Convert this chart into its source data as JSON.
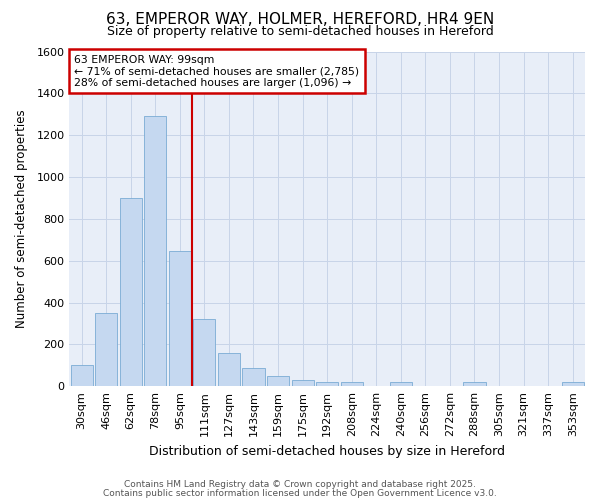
{
  "title1": "63, EMPEROR WAY, HOLMER, HEREFORD, HR4 9EN",
  "title2": "Size of property relative to semi-detached houses in Hereford",
  "xlabel": "Distribution of semi-detached houses by size in Hereford",
  "ylabel": "Number of semi-detached properties",
  "categories": [
    "30sqm",
    "46sqm",
    "62sqm",
    "78sqm",
    "95sqm",
    "111sqm",
    "127sqm",
    "143sqm",
    "159sqm",
    "175sqm",
    "192sqm",
    "208sqm",
    "224sqm",
    "240sqm",
    "256sqm",
    "272sqm",
    "288sqm",
    "305sqm",
    "321sqm",
    "337sqm",
    "353sqm"
  ],
  "bar_values": [
    100,
    350,
    900,
    1290,
    645,
    320,
    160,
    85,
    48,
    28,
    18,
    18,
    0,
    18,
    0,
    0,
    18,
    0,
    0,
    0,
    18
  ],
  "bar_color": "#c5d8f0",
  "bar_edgecolor": "#7aacd4",
  "annotation_title": "63 EMPEROR WAY: 99sqm",
  "annotation_line1": "← 71% of semi-detached houses are smaller (2,785)",
  "annotation_line2": "28% of semi-detached houses are larger (1,096) →",
  "annotation_box_facecolor": "#ffffff",
  "annotation_box_edgecolor": "#cc0000",
  "vline_color": "#cc0000",
  "vline_x_index": 4.5,
  "ylim": [
    0,
    1600
  ],
  "fig_facecolor": "#ffffff",
  "axes_facecolor": "#e8eef8",
  "grid_color": "#c8d4e8",
  "footer1": "Contains HM Land Registry data © Crown copyright and database right 2025.",
  "footer2": "Contains public sector information licensed under the Open Government Licence v3.0.",
  "title1_fontsize": 11,
  "title2_fontsize": 9,
  "xlabel_fontsize": 9,
  "ylabel_fontsize": 8.5,
  "tick_fontsize": 8,
  "footer_fontsize": 6.5
}
